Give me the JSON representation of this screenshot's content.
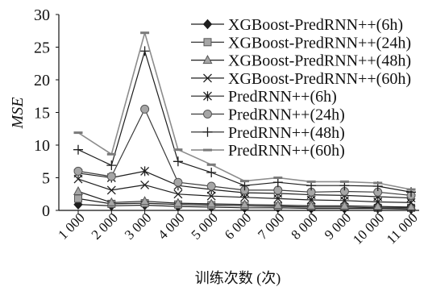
{
  "chart_data": {
    "type": "line",
    "categories": [
      "1 000",
      "2 000",
      "3 000",
      "4 000",
      "5 000",
      "6 000",
      "7 000",
      "8 000",
      "9 000",
      "10 000",
      "11 000"
    ],
    "xlabel": "训练次数 (次)",
    "ylabel": "MSE",
    "ylim": [
      0,
      30
    ],
    "yticks": [
      0,
      5,
      10,
      15,
      20,
      25,
      30
    ],
    "grid": false,
    "legend": "top-right",
    "series": [
      {
        "name": "XGBoost-PredRNN++(6h)",
        "marker": "diamond",
        "line_color": "#1e1e1e",
        "marker_fill": "#1e1e1e",
        "values": [
          0.9,
          0.7,
          0.8,
          0.6,
          0.5,
          0.4,
          0.4,
          0.3,
          0.3,
          0.3,
          0.2
        ]
      },
      {
        "name": "XGBoost-PredRNN++(24h)",
        "marker": "square",
        "line_color": "#1e1e1e",
        "marker_fill": "#a6a6a6",
        "values": [
          1.8,
          1.0,
          1.1,
          0.9,
          0.8,
          0.7,
          0.6,
          0.5,
          0.5,
          0.4,
          0.4
        ]
      },
      {
        "name": "XGBoost-PredRNN++(48h)",
        "marker": "triangle",
        "line_color": "#1e1e1e",
        "marker_fill": "#a6a6a6",
        "values": [
          2.9,
          1.2,
          1.4,
          1.1,
          1.0,
          0.9,
          0.8,
          0.7,
          0.7,
          0.6,
          0.5
        ]
      },
      {
        "name": "XGBoost-PredRNN++(60h)",
        "marker": "x-cross",
        "line_color": "#1e1e1e",
        "marker_fill": "#1e1e1e",
        "values": [
          4.8,
          3.1,
          3.9,
          2.5,
          2.2,
          2.0,
          1.8,
          1.6,
          1.5,
          1.3,
          1.2
        ]
      },
      {
        "name": "PredRNN++(6h)",
        "marker": "asterisk",
        "line_color": "#1e1e1e",
        "marker_fill": "#1e1e1e",
        "values": [
          5.7,
          5.0,
          6.0,
          3.8,
          3.2,
          2.7,
          2.6,
          2.4,
          2.3,
          2.1,
          1.9
        ]
      },
      {
        "name": "PredRNN++(24h)",
        "marker": "circle",
        "line_color": "#3a3a3a",
        "marker_fill": "#a6a6a6",
        "values": [
          6.0,
          5.2,
          15.5,
          4.3,
          3.7,
          3.1,
          3.1,
          2.8,
          2.9,
          2.8,
          2.3
        ]
      },
      {
        "name": "PredRNN++(48h)",
        "marker": "plus",
        "line_color": "#1e1e1e",
        "marker_fill": "#1e1e1e",
        "values": [
          9.3,
          6.9,
          24.4,
          7.5,
          5.8,
          3.8,
          4.3,
          3.8,
          3.8,
          3.7,
          2.8
        ]
      },
      {
        "name": "PredRNN++(60h)",
        "marker": "dash",
        "line_color": "#8c8c8c",
        "marker_fill": "#7a7a7a",
        "values": [
          11.9,
          8.6,
          27.2,
          9.3,
          7.0,
          4.5,
          5.0,
          4.4,
          4.4,
          4.2,
          3.2
        ]
      }
    ]
  }
}
